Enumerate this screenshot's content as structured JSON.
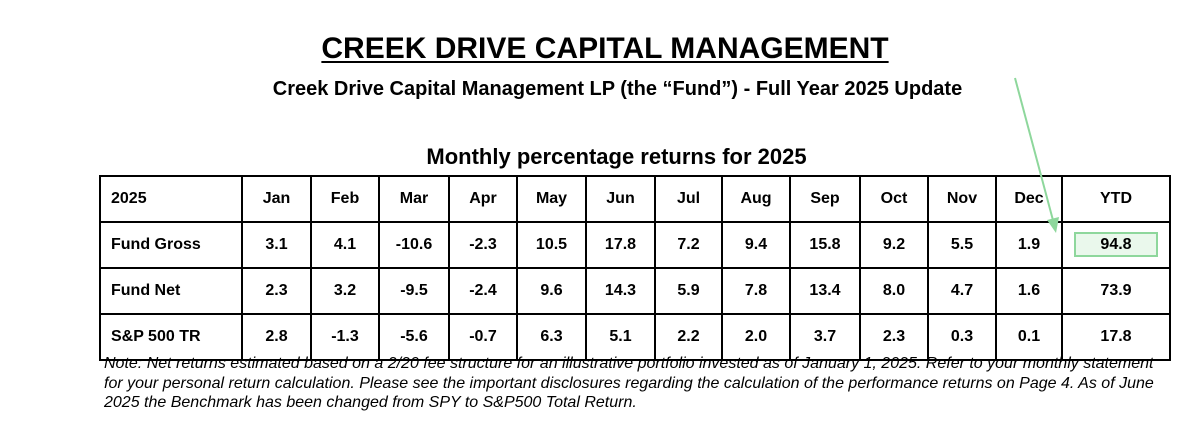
{
  "header": {
    "title": "CREEK DRIVE CAPITAL MANAGEMENT",
    "subtitle": "Creek Drive Capital Management LP (the “Fund”) - Full Year 2025 Update",
    "table_title": "Monthly percentage returns for 2025"
  },
  "table": {
    "columns": [
      "2025",
      "Jan",
      "Feb",
      "Mar",
      "Apr",
      "May",
      "Jun",
      "Jul",
      "Aug",
      "Sep",
      "Oct",
      "Nov",
      "Dec",
      "YTD"
    ],
    "rows": [
      {
        "label": "Fund Gross",
        "values": [
          "3.1",
          "4.1",
          "-10.6",
          "-2.3",
          "10.5",
          "17.8",
          "7.2",
          "9.4",
          "15.8",
          "9.2",
          "5.5",
          "1.9",
          "94.8"
        ]
      },
      {
        "label": "Fund Net",
        "values": [
          "2.3",
          "3.2",
          "-9.5",
          "-2.4",
          "9.6",
          "14.3",
          "5.9",
          "7.8",
          "13.4",
          "8.0",
          "4.7",
          "1.6",
          "73.9"
        ]
      },
      {
        "label": "S&P 500 TR",
        "values": [
          "2.8",
          "-1.3",
          "-5.6",
          "-0.7",
          "6.3",
          "5.1",
          "2.2",
          "2.0",
          "3.7",
          "2.3",
          "0.3",
          "0.1",
          "17.8"
        ]
      }
    ]
  },
  "highlight": {
    "color": "#8ed79c",
    "fill": "#eaf8ec"
  },
  "note": "Note: Net returns estimated based on a 2/20 fee structure for an illustrative portfolio invested as of January 1, 2025. Refer to your monthly statement for your personal return calculation. Please see the important disclosures regarding the calculation of the performance returns on Page 4. As of June 2025 the Benchmark has been changed from SPY to S&P500 Total Return."
}
